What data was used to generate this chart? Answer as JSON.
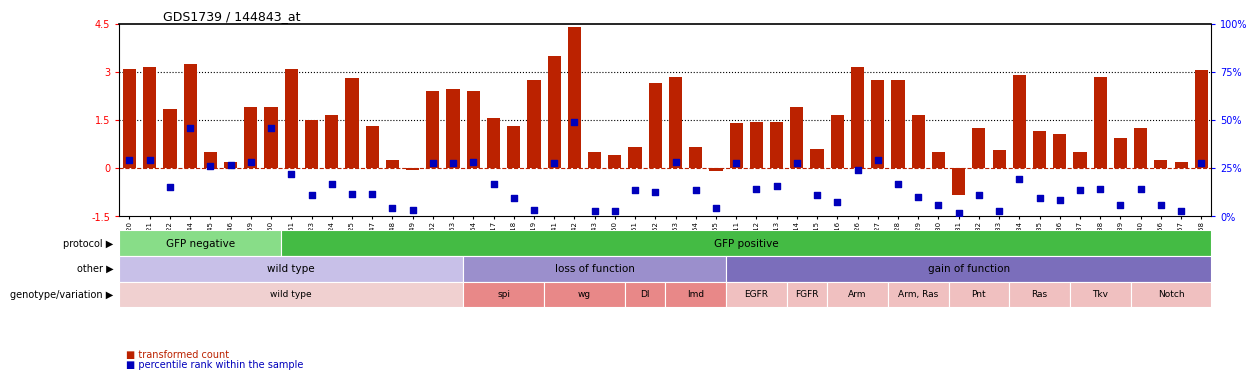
{
  "title": "GDS1739 / 144843_at",
  "samples": [
    "GSM88220",
    "GSM88221",
    "GSM88222",
    "GSM88244",
    "GSM88245",
    "GSM88246",
    "GSM88259",
    "GSM88260",
    "GSM88261",
    "GSM88223",
    "GSM88224",
    "GSM88225",
    "GSM88247",
    "GSM88248",
    "GSM88249",
    "GSM88262",
    "GSM88263",
    "GSM88264",
    "GSM88217",
    "GSM88218",
    "GSM88219",
    "GSM88241",
    "GSM88242",
    "GSM88243",
    "GSM88250",
    "GSM88251",
    "GSM88252",
    "GSM88253",
    "GSM88254",
    "GSM88255",
    "GSM88211",
    "GSM88212",
    "GSM88213",
    "GSM88214",
    "GSM88215",
    "GSM88216",
    "GSM88226",
    "GSM88227",
    "GSM88228",
    "GSM88229",
    "GSM88230",
    "GSM88231",
    "GSM88232",
    "GSM88233",
    "GSM88234",
    "GSM88235",
    "GSM88236",
    "GSM88237",
    "GSM88238",
    "GSM88239",
    "GSM88240",
    "GSM88256",
    "GSM88257",
    "GSM88258"
  ],
  "bar_values": [
    3.1,
    3.15,
    1.85,
    3.25,
    0.5,
    0.2,
    1.9,
    1.9,
    3.1,
    1.5,
    1.65,
    2.8,
    1.3,
    0.25,
    -0.05,
    2.4,
    2.45,
    2.4,
    1.55,
    1.3,
    2.75,
    3.5,
    4.4,
    0.5,
    0.4,
    0.65,
    2.65,
    2.85,
    0.65,
    -0.1,
    1.4,
    1.45,
    1.45,
    1.9,
    0.6,
    1.65,
    3.15,
    2.75,
    2.75,
    1.65,
    0.5,
    -0.85,
    1.25,
    0.55,
    2.9,
    1.15,
    1.05,
    0.5,
    2.85,
    0.95,
    1.25,
    0.25,
    0.2,
    3.05
  ],
  "dot_values": [
    0.25,
    0.25,
    -0.6,
    1.25,
    0.05,
    0.1,
    0.2,
    1.25,
    -0.2,
    -0.85,
    -0.5,
    -0.8,
    -0.8,
    -1.25,
    -1.3,
    0.15,
    0.15,
    0.2,
    -0.5,
    -0.95,
    -1.3,
    0.15,
    1.45,
    -1.35,
    -1.35,
    -0.7,
    -0.75,
    0.2,
    -0.7,
    -1.25,
    0.15,
    -0.65,
    -0.55,
    0.15,
    -0.85,
    -1.05,
    -0.05,
    0.25,
    -0.5,
    -0.9,
    -1.15,
    -1.4,
    -0.85,
    -1.35,
    -0.35,
    -0.95,
    -1.0,
    -0.7,
    -0.65,
    -1.15,
    -0.65,
    -1.15,
    -1.35,
    0.15
  ],
  "protocol_boundaries": [
    {
      "start": 0,
      "end": 8,
      "color": "#88DD88",
      "label": "GFP negative"
    },
    {
      "start": 8,
      "end": 54,
      "color": "#44BB44",
      "label": "GFP positive"
    }
  ],
  "other_groups": [
    {
      "label": "wild type",
      "start": 0,
      "end": 17,
      "color": "#C8C0E8"
    },
    {
      "label": "loss of function",
      "start": 17,
      "end": 30,
      "color": "#9B8FCC"
    },
    {
      "label": "gain of function",
      "start": 30,
      "end": 54,
      "color": "#7B6EBB"
    }
  ],
  "genotype_groups": [
    {
      "label": "wild type",
      "start": 0,
      "end": 17,
      "color": "#F0D0D0"
    },
    {
      "label": "spi",
      "start": 17,
      "end": 21,
      "color": "#E88888"
    },
    {
      "label": "wg",
      "start": 21,
      "end": 25,
      "color": "#E88888"
    },
    {
      "label": "Dl",
      "start": 25,
      "end": 27,
      "color": "#E88888"
    },
    {
      "label": "Imd",
      "start": 27,
      "end": 30,
      "color": "#E88888"
    },
    {
      "label": "EGFR",
      "start": 30,
      "end": 33,
      "color": "#F0C0C0"
    },
    {
      "label": "FGFR",
      "start": 33,
      "end": 35,
      "color": "#F0C0C0"
    },
    {
      "label": "Arm",
      "start": 35,
      "end": 38,
      "color": "#F0C0C0"
    },
    {
      "label": "Arm, Ras",
      "start": 38,
      "end": 41,
      "color": "#F0C0C0"
    },
    {
      "label": "Pnt",
      "start": 41,
      "end": 44,
      "color": "#F0C0C0"
    },
    {
      "label": "Ras",
      "start": 44,
      "end": 47,
      "color": "#F0C0C0"
    },
    {
      "label": "Tkv",
      "start": 47,
      "end": 50,
      "color": "#F0C0C0"
    },
    {
      "label": "Notch",
      "start": 50,
      "end": 54,
      "color": "#F0C0C0"
    }
  ],
  "ylim": [
    -1.5,
    4.5
  ],
  "yticks_left": [
    -1.5,
    0.0,
    1.5,
    3.0,
    4.5
  ],
  "yticks_right_pct": [
    0,
    25,
    50,
    75,
    100
  ],
  "hlines_dotted": [
    1.5,
    3.0
  ],
  "hline_red": 0.0,
  "bar_color": "#BB2200",
  "dot_color": "#0000BB",
  "bg_color": "#FFFFFF"
}
